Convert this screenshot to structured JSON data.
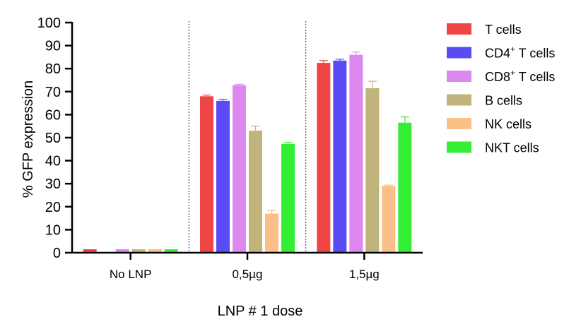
{
  "chart_data": {
    "type": "bar",
    "categories": [
      "No LNP",
      "0,5µg",
      "1,5µg"
    ],
    "xlabel": "LNP # 1 dose",
    "ylabel": "% GFP expression",
    "ylim": [
      0,
      100
    ],
    "yticks": [
      0,
      10,
      20,
      30,
      40,
      50,
      60,
      70,
      80,
      90,
      100
    ],
    "grid": false,
    "legend_position": "right",
    "series": [
      {
        "name": "T cells",
        "label_main": "T cells",
        "label_sup": "",
        "label_rest": "",
        "color": "#f04545",
        "values": [
          1.5,
          68,
          82.5
        ],
        "errors": [
          0,
          0.5,
          1.0
        ]
      },
      {
        "name": "CD4+ T cells",
        "label_main": "CD4",
        "label_sup": "+",
        "label_rest": " T cells",
        "color": "#5a4cf5",
        "values": [
          0,
          66,
          83.5
        ],
        "errors": [
          0,
          0.7,
          0.6
        ]
      },
      {
        "name": "CD8+ T cells",
        "label_main": "CD8",
        "label_sup": "+",
        "label_rest": " T cells",
        "color": "#dd88ee",
        "values": [
          1.5,
          72.8,
          86
        ],
        "errors": [
          0,
          0.4,
          1.2
        ]
      },
      {
        "name": "B cells",
        "label_main": "B cells",
        "label_sup": "",
        "label_rest": "",
        "color": "#c0b47c",
        "values": [
          1.5,
          53,
          71.5
        ],
        "errors": [
          0,
          2.0,
          3.0
        ]
      },
      {
        "name": "NK cells",
        "label_main": "NK cells",
        "label_sup": "",
        "label_rest": "",
        "color": "#fbbf88",
        "values": [
          1.5,
          17,
          29
        ],
        "errors": [
          0,
          1.3,
          0.4
        ]
      },
      {
        "name": "NKT cells",
        "label_main": "NKT cells",
        "label_sup": "",
        "label_rest": "",
        "color": "#33ee33",
        "values": [
          1.5,
          47.3,
          56.5
        ],
        "errors": [
          0,
          0.6,
          2.5
        ]
      }
    ]
  }
}
